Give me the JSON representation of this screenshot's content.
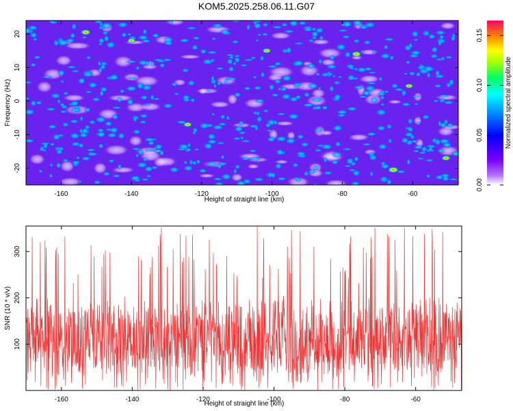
{
  "figure": {
    "title": "KOM5.2025.258.06.11.G07"
  },
  "chart_data": [
    {
      "type": "heatmap",
      "xlabel": "Height of straight line (km)",
      "ylabel": "Frequency (Hz)",
      "xlim": [
        -170,
        -47
      ],
      "ylim": [
        -25,
        24
      ],
      "xticks": [
        "-160",
        "-140",
        "-120",
        "-100",
        "-80",
        "-60"
      ],
      "yticks": [
        "20",
        "10",
        "0",
        "-10",
        "-20"
      ],
      "colorbar": {
        "label": "Normalized spectral amplitude",
        "range": [
          0,
          0.165
        ],
        "ticks": [
          "0.00",
          "0.05",
          "0.10",
          "0.15"
        ],
        "colors": [
          "#ffffff",
          "#7a00ff",
          "#0000ff",
          "#00ffff",
          "#00ff66",
          "#ffff00",
          "#ff6600",
          "#ff0066"
        ]
      },
      "peaks": [
        {
          "x": -65.5,
          "y": -20.5,
          "value": 0.16
        },
        {
          "x": -153,
          "y": 20.5,
          "value": 0.13
        },
        {
          "x": -76,
          "y": 14,
          "value": 0.12
        },
        {
          "x": -50.5,
          "y": -17,
          "value": 0.1
        },
        {
          "x": -124,
          "y": -7,
          "value": 0.09
        },
        {
          "x": -101.5,
          "y": 15,
          "value": 0.09
        },
        {
          "x": -140,
          "y": 18,
          "value": 0.08
        },
        {
          "x": -61,
          "y": 4.5,
          "value": 0.08
        }
      ]
    },
    {
      "type": "line",
      "xlabel": "Height of straight line (km)",
      "ylabel": "SNR (10 * v/v)",
      "xlim": [
        -170,
        -47
      ],
      "ylim": [
        0,
        355
      ],
      "xticks": [
        "-160",
        "-140",
        "-120",
        "-100",
        "-80",
        "-60"
      ],
      "yticks": [
        "100",
        "200",
        "300"
      ],
      "series": [
        {
          "color": "#ee3333",
          "mean": 110,
          "noise_typical": [
            20,
            210
          ],
          "max": 355
        }
      ]
    }
  ]
}
